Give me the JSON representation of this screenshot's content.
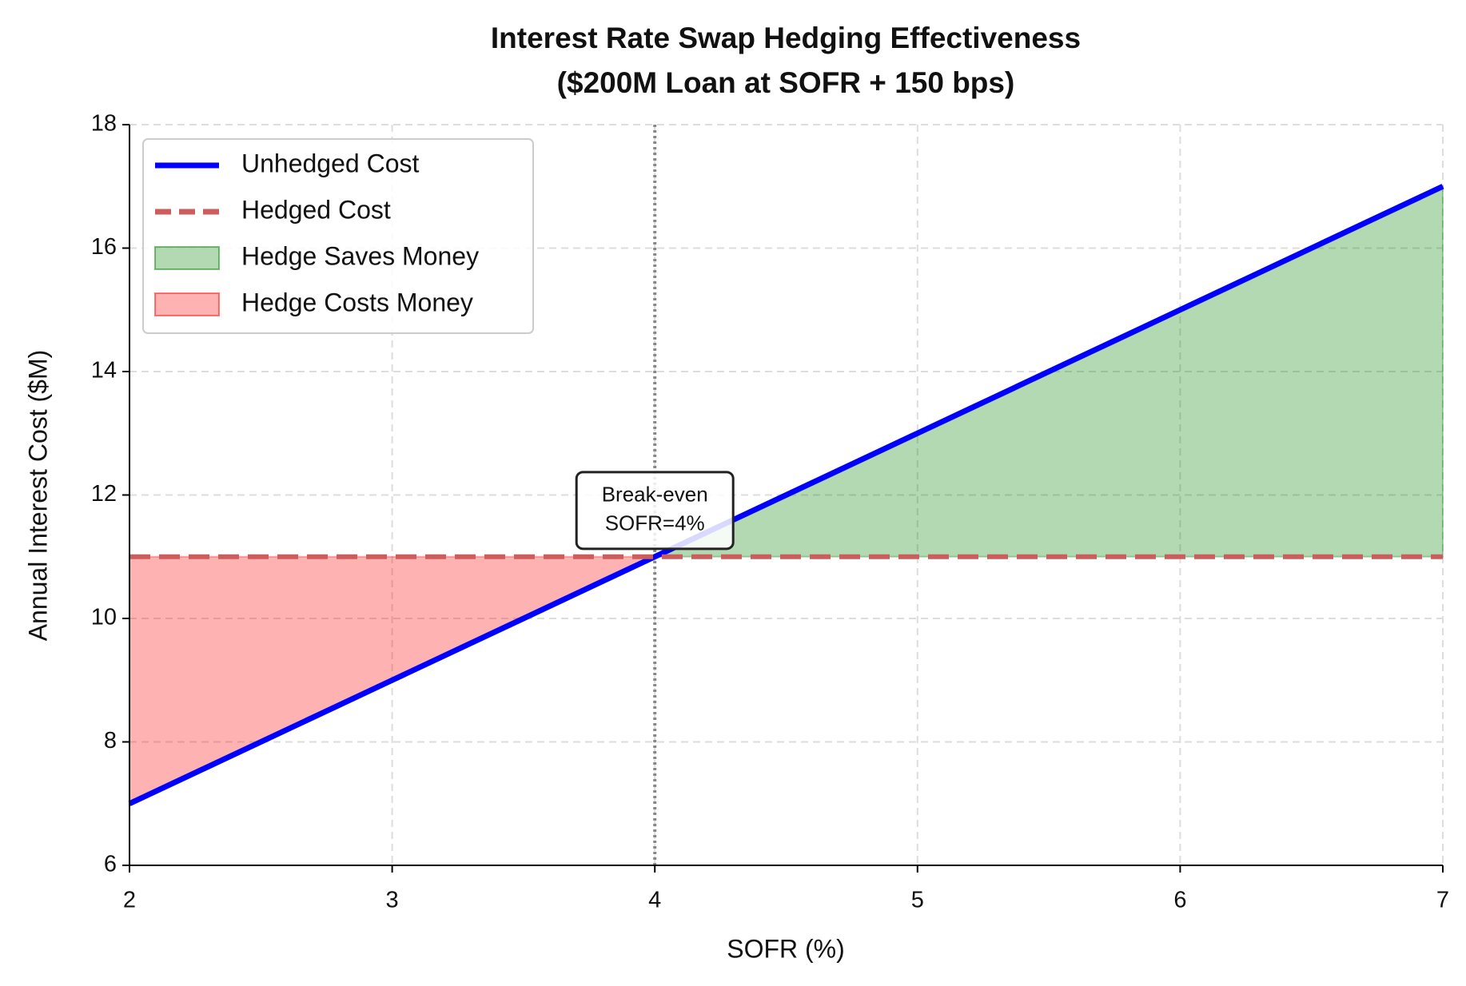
{
  "chart_data": {
    "type": "line",
    "title": "Interest Rate Swap Hedging Effectiveness",
    "subtitle": "($200M Loan at SOFR + 150 bps)",
    "x_label": "SOFR (%)",
    "y_label": "Annual Interest Cost ($M)",
    "x": [
      2,
      3,
      4,
      5,
      6,
      7
    ],
    "series": [
      {
        "name": "Unhedged Cost",
        "color": "#0000ff",
        "style": "solid",
        "values": [
          7,
          9,
          11,
          13,
          15,
          17
        ]
      },
      {
        "name": "Hedged Cost",
        "color": "#cd5c5c",
        "style": "dashed",
        "values": [
          11,
          11,
          11,
          11,
          11,
          11
        ]
      }
    ],
    "fills": [
      {
        "name": "Hedge Saves Money",
        "color": "#008000",
        "opacity": 0.3,
        "when": "above"
      },
      {
        "name": "Hedge Costs Money",
        "color": "#ff0000",
        "opacity": 0.3,
        "when": "below"
      }
    ],
    "vline": 4,
    "annotation": {
      "lines": [
        "Break-even",
        "SOFR=4%"
      ],
      "x": 4,
      "y": 11.75
    },
    "xlim": [
      2,
      7
    ],
    "xticks": [
      2,
      3,
      4,
      5,
      6,
      7
    ],
    "ylim": [
      6,
      18
    ],
    "yticks": [
      6,
      8,
      10,
      12,
      14,
      16,
      18
    ],
    "grid": true,
    "legend": "upper left"
  }
}
